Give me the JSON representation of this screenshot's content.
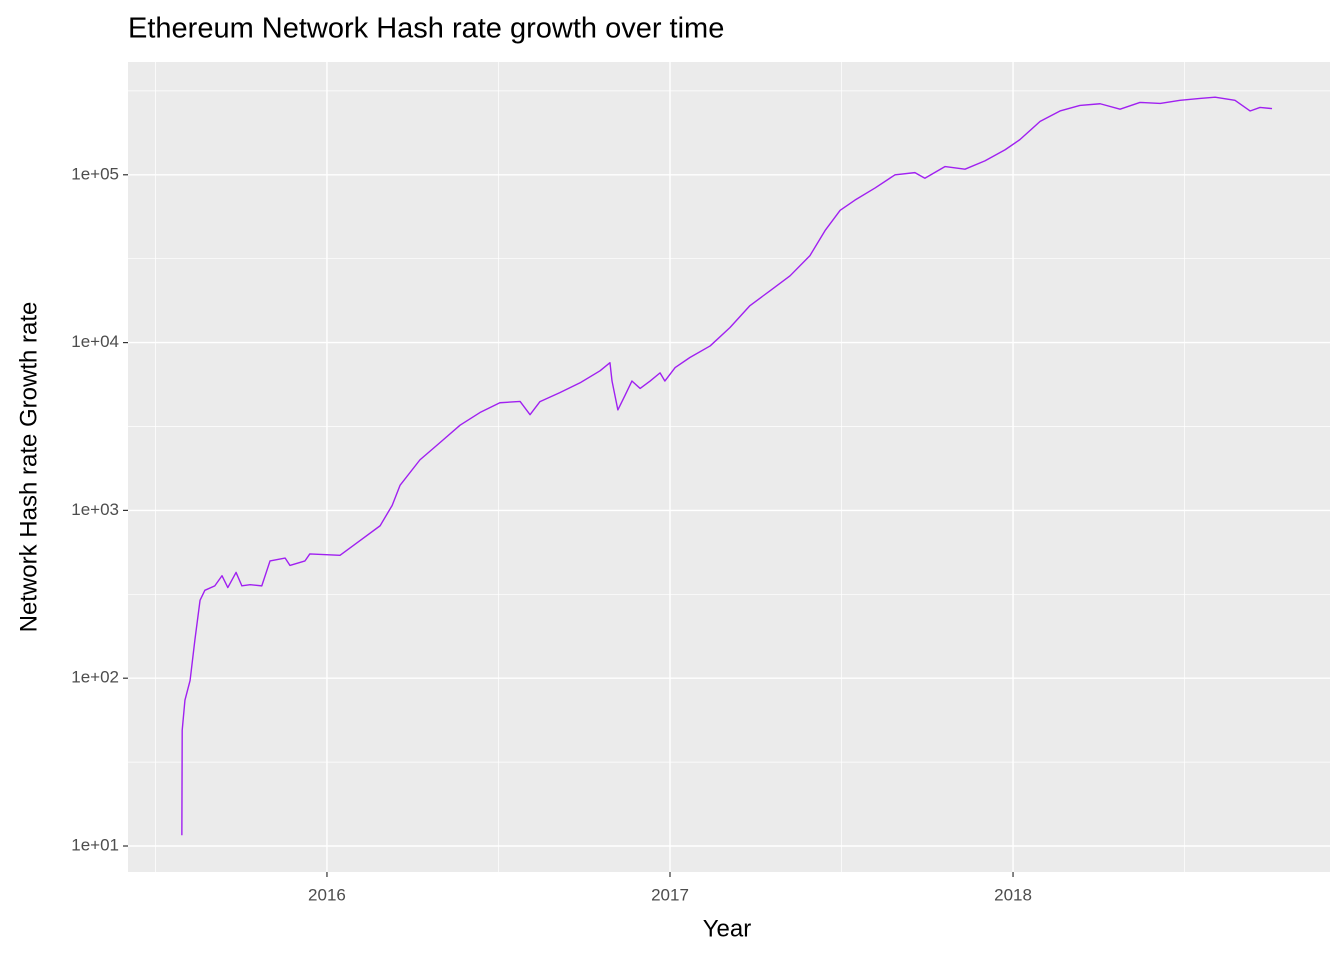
{
  "chart_data": {
    "type": "line",
    "title": "Ethereum Network Hash rate growth over time",
    "x_label": "Year",
    "y_label": "Network Hash rate Growth rate",
    "log_y": true,
    "grid": true,
    "xlim": [
      2015.42,
      2018.924
    ],
    "xticks": [
      2016,
      2017,
      2018
    ],
    "xminor": [
      2015.5,
      2016.5,
      2017.5,
      2018.5
    ],
    "ylim": [
      7,
      470000
    ],
    "yticks": [
      {
        "value": 10,
        "label": "1e+01"
      },
      {
        "value": 100,
        "label": "1e+02"
      },
      {
        "value": 1000,
        "label": "1e+03"
      },
      {
        "value": 10000,
        "label": "1e+04"
      },
      {
        "value": 100000,
        "label": "1e+05"
      }
    ],
    "yminor": [
      31.62,
      316.2,
      3162,
      31620,
      316200
    ],
    "x": [
      2015.577,
      2015.578,
      2015.586,
      2015.601,
      2015.615,
      2015.63,
      2015.644,
      2015.673,
      2015.694,
      2015.711,
      2015.735,
      2015.752,
      2015.776,
      2015.81,
      2015.834,
      2015.878,
      2015.892,
      2015.936,
      2015.95,
      2016.038,
      2016.096,
      2016.155,
      2016.19,
      2016.213,
      2016.271,
      2016.329,
      2016.388,
      2016.446,
      2016.504,
      2016.563,
      2016.592,
      2016.621,
      2016.679,
      2016.738,
      2016.796,
      2016.825,
      2016.831,
      2016.848,
      2016.869,
      2016.889,
      2016.913,
      2016.942,
      2016.971,
      2016.985,
      2017.015,
      2017.058,
      2017.117,
      2017.175,
      2017.233,
      2017.292,
      2017.35,
      2017.408,
      2017.452,
      2017.496,
      2017.539,
      2017.598,
      2017.656,
      2017.714,
      2017.743,
      2017.802,
      2017.86,
      2017.918,
      2017.977,
      2018.02,
      2018.079,
      2018.137,
      2018.195,
      2018.254,
      2018.312,
      2018.37,
      2018.429,
      2018.487,
      2018.545,
      2018.589,
      2018.647,
      2018.691,
      2018.72,
      2018.755
    ],
    "series": [
      {
        "name": "Hash rate",
        "color": "#a020f0",
        "values": [
          11.6,
          49,
          74,
          97,
          169,
          291,
          334,
          355,
          408,
          347,
          427,
          355,
          361,
          355,
          500,
          520,
          470,
          500,
          550,
          540,
          660,
          810,
          1070,
          1410,
          2000,
          2530,
          3220,
          3830,
          4380,
          4460,
          3720,
          4450,
          5030,
          5760,
          6790,
          7590,
          5900,
          3970,
          4850,
          5900,
          5330,
          5900,
          6600,
          5900,
          7100,
          8150,
          9550,
          12300,
          16600,
          20400,
          25000,
          33000,
          46500,
          61400,
          70600,
          83500,
          100000,
          103000,
          95400,
          112000,
          108000,
          121000,
          141000,
          162000,
          208000,
          240000,
          259000,
          265000,
          246000,
          270000,
          266000,
          278000,
          285000,
          290000,
          278000,
          240000,
          252000,
          248000
        ]
      }
    ]
  }
}
